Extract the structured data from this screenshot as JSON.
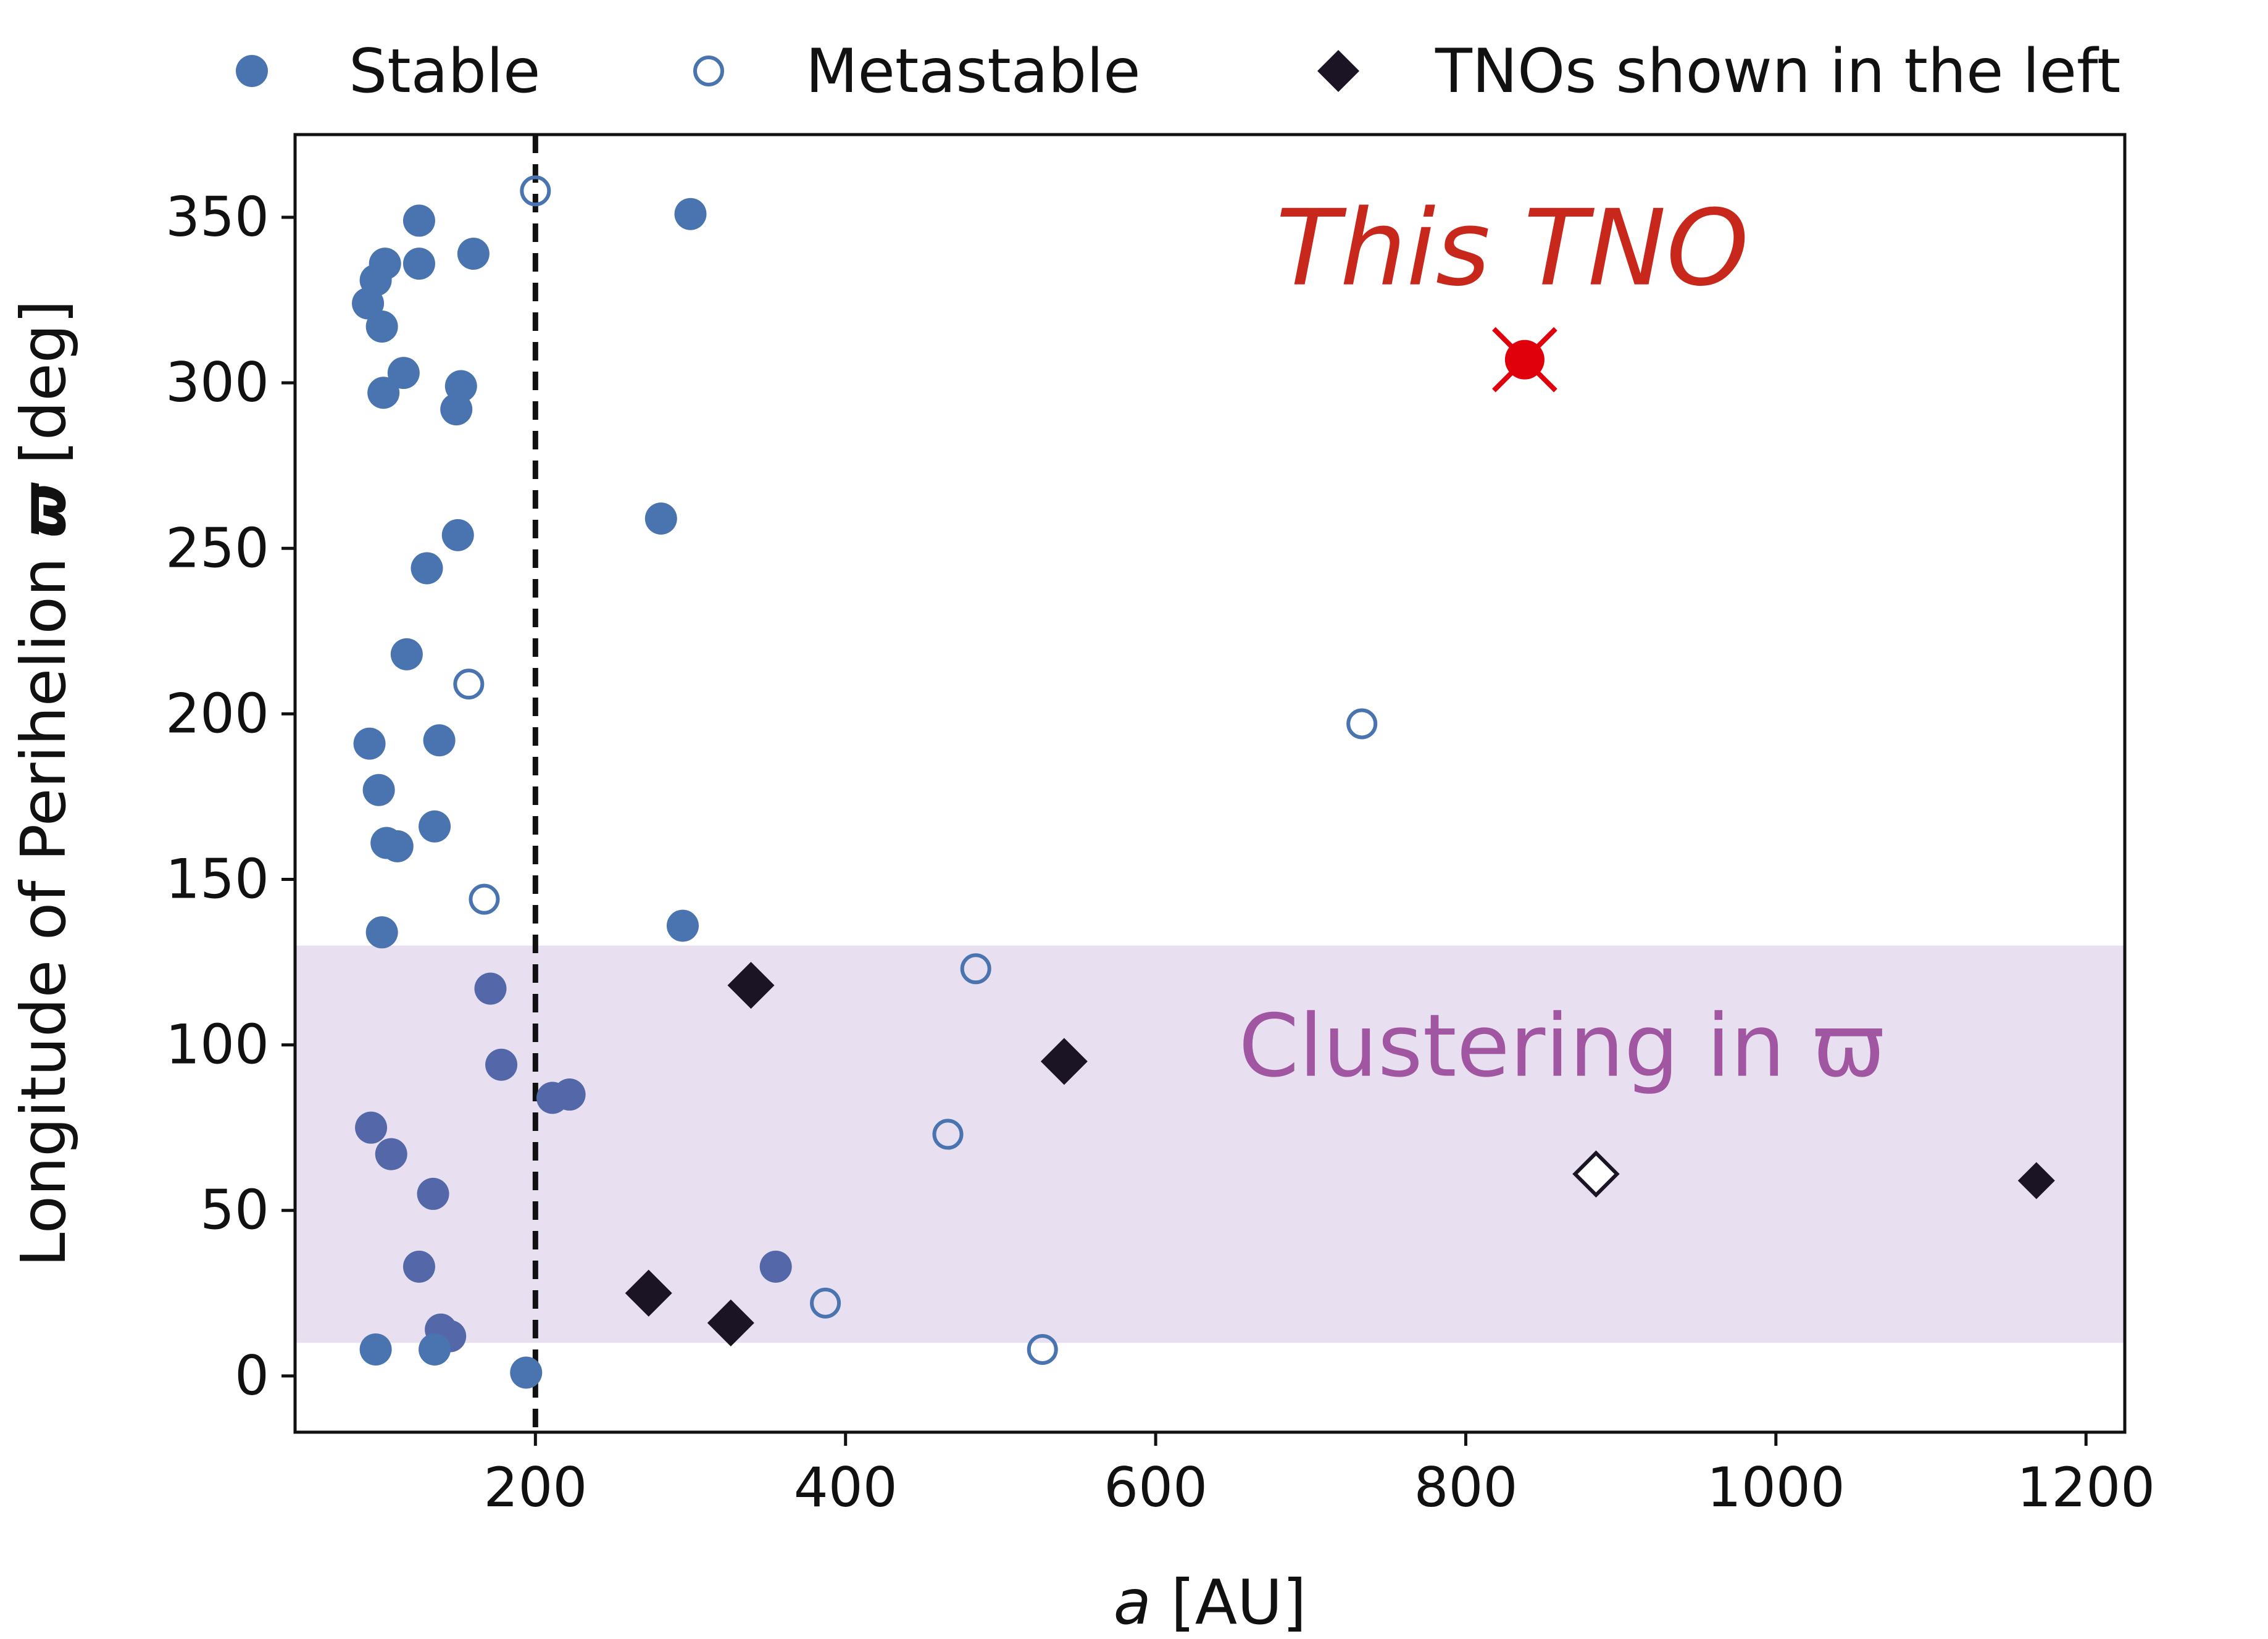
{
  "chart_data": {
    "type": "scatter",
    "xlabel_var": "a",
    "xlabel_unit": "[AU]",
    "ylabel_text": "Longitude of Perihelion",
    "ylabel_symbol": "ϖ",
    "ylabel_unit": "[deg]",
    "xlim": [
      45,
      1225
    ],
    "ylim": [
      -17,
      375
    ],
    "x_ticks": [
      200,
      400,
      600,
      800,
      1000,
      1200
    ],
    "y_ticks": [
      0,
      50,
      100,
      150,
      200,
      250,
      300,
      350
    ],
    "grid": false,
    "legend_position": "top",
    "legend": [
      {
        "label": "Stable",
        "marker": "filled-circle"
      },
      {
        "label": "Metastable",
        "marker": "open-circle"
      },
      {
        "label": "TNOs shown in the left",
        "marker": "filled-diamond"
      }
    ],
    "colors": {
      "stable": "#4a74b0",
      "stable_dark": "#5467a8",
      "metastable_edge": "#4a74b0",
      "tno": "#1a1424",
      "this_tno": "#e0000c",
      "this_tno_text": "#c8281c",
      "cluster_fill": "#e8e0f0",
      "cluster_text": "#a056a0",
      "dashed_line": "#111111"
    },
    "vertical_line_x": 200,
    "clustering_band": {
      "y_min": 10,
      "y_max": 130
    },
    "series": [
      {
        "name": "Stable",
        "points": [
          [
            125,
            349
          ],
          [
            103,
            336
          ],
          [
            97,
            331
          ],
          [
            125,
            336
          ],
          [
            160,
            339
          ],
          [
            92,
            324
          ],
          [
            101,
            317
          ],
          [
            115,
            303
          ],
          [
            152,
            299
          ],
          [
            102,
            297
          ],
          [
            149,
            292
          ],
          [
            300,
            351
          ],
          [
            150,
            254
          ],
          [
            130,
            244
          ],
          [
            281,
            259
          ],
          [
            117,
            218
          ],
          [
            93,
            191
          ],
          [
            99,
            177
          ],
          [
            138,
            192
          ],
          [
            104,
            161
          ],
          [
            111,
            160
          ],
          [
            135,
            166
          ],
          [
            101,
            134
          ],
          [
            295,
            136
          ],
          [
            171,
            117
          ],
          [
            178,
            94
          ],
          [
            211,
            84
          ],
          [
            222,
            85
          ],
          [
            94,
            75
          ],
          [
            107,
            67
          ],
          [
            134,
            55
          ],
          [
            355,
            33
          ],
          [
            125,
            33
          ],
          [
            139,
            14
          ],
          [
            145,
            12
          ],
          [
            135,
            8
          ],
          [
            97,
            8
          ],
          [
            194,
            1
          ]
        ]
      },
      {
        "name": "Metastable",
        "points": [
          [
            200,
            358
          ],
          [
            157,
            209
          ],
          [
            167,
            144
          ],
          [
            484,
            123
          ],
          [
            466,
            73
          ],
          [
            387,
            22
          ],
          [
            527,
            8
          ],
          [
            733,
            197
          ]
        ]
      },
      {
        "name": "TNOs shown in the left",
        "points": [
          [
            339,
            118
          ],
          [
            541,
            95
          ],
          [
            273,
            25
          ],
          [
            326,
            16
          ],
          [
            1168,
            59
          ]
        ],
        "open_points": [
          [
            884,
            61
          ]
        ]
      },
      {
        "name": "This TNO",
        "points": [
          [
            838,
            307
          ]
        ]
      }
    ],
    "annotations": [
      {
        "text": "This TNO",
        "x": 838,
        "y": 340
      },
      {
        "text": "Clustering in ϖ",
        "x": 850,
        "y": 100
      }
    ]
  }
}
